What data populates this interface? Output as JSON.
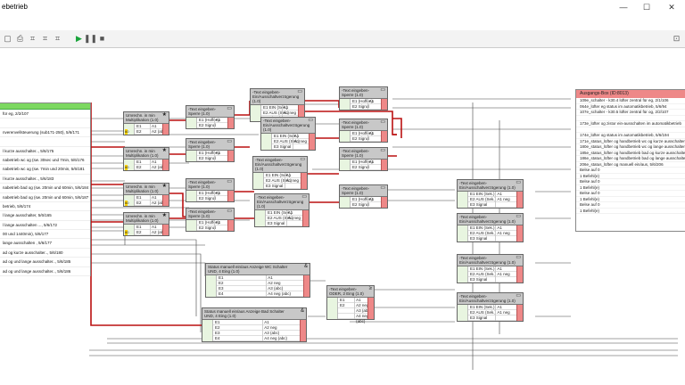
{
  "window": {
    "title": "ebetrieb",
    "minimize": "—",
    "maximize": "☐",
    "close": "✕"
  },
  "source_block": {
    "items": [
      "für eg, 2/2/107",
      "",
      "nverenvellsteuerung (sub171-250), 5/6/171",
      "",
      "l kurze ausschalter.., 5/6/175",
      "nabetrieb wc og (sw. 30sec und 7min, 5/6/176",
      "nabetrieb wc og (sw. 7min und 20min, 5/6/181",
      "l kurze ausschalter.., 5/6/183",
      "nabetrieb bad og (sw. 20min und 60min, 5/6/184",
      "nabetrieb bad og (sw. 20min und 60min, 5/6/187",
      "betrieb, 5/6/174",
      "l lange ausschalter, 5/6/165",
      "l lange ausschalten ..., 5/6/172",
      "00 und 1440min), 5/6/177",
      "lange ausschalten , 5/6/177",
      "ad og kurze ausschalter.., 5/6/180",
      "ad og und lange ausschalter.., 5/6/185",
      "ad og und lange ausschalter.., 5/6/186"
    ]
  },
  "mult_blocks": [
    {
      "title": "Umrechn. in min",
      "sub": "Multiplikation (1.0)",
      "rows": [
        [
          "E1",
          "A1"
        ],
        [
          "E2",
          "A2 (abc)"
        ]
      ],
      "badge": "60"
    },
    {
      "title": "Umrechn. in min",
      "sub": "Multiplikation (1.0)",
      "rows": [
        [
          "E1",
          "A1"
        ],
        [
          "E2",
          "A2 (abc)"
        ]
      ],
      "badge": "60"
    },
    {
      "title": "Umrechn. in min",
      "sub": "Multiplikation (1.0)",
      "rows": [
        [
          "E1",
          "A1"
        ],
        [
          "E2",
          "A2 (abc)"
        ]
      ],
      "badge": "60"
    },
    {
      "title": "Umrechn. in min",
      "sub": "Multiplikation (1.0)",
      "rows": [
        [
          "E1",
          "A1"
        ],
        [
          "E2",
          "A2 (abc)"
        ]
      ],
      "badge": "60"
    }
  ],
  "sperr_blocks": [
    {
      "title": "-Text eingeben-",
      "sub": "Sperre (1.0)",
      "rows": [
        [
          "E1 (Hoffen)",
          "A1"
        ],
        [
          "E2 Signal",
          ""
        ]
      ]
    },
    {
      "title": "-Text eingeben-",
      "sub": "Sperre (1.0)",
      "rows": [
        [
          "E1 (Hoffen)",
          "A1"
        ],
        [
          "E2 Signal",
          ""
        ]
      ]
    },
    {
      "title": "-Text eingeben-",
      "sub": "Sperre (1.0)",
      "rows": [
        [
          "E1 (Hoffen)",
          "A1"
        ],
        [
          "E2 Signal",
          ""
        ]
      ]
    },
    {
      "title": "-Text eingeben-",
      "sub": "Sperre (1.0)",
      "rows": [
        [
          "E1 (Hoffen)",
          "A1"
        ],
        [
          "E2 Signal",
          ""
        ]
      ]
    },
    {
      "title": "-Text eingeben-",
      "sub": "Sperre (1.0)",
      "rows": [
        [
          "E1 (Hoffen)",
          "A1"
        ],
        [
          "E2 Signal",
          ""
        ]
      ]
    },
    {
      "title": "-Text eingeben-",
      "sub": "Sperre (1.0)",
      "rows": [
        [
          "E1 (Hoffen)",
          "A1"
        ],
        [
          "E2 Signal",
          ""
        ]
      ]
    },
    {
      "title": "-Text eingeben-",
      "sub": "Sperre (1.0)",
      "rows": [
        [
          "E1 (Hoffen)",
          "A1"
        ],
        [
          "E2 Signal",
          ""
        ]
      ]
    },
    {
      "title": "-Text eingeben-",
      "sub": "Sperre (1.0)",
      "rows": [
        [
          "E1 (Hoffen)",
          "A1"
        ],
        [
          "E2 Signal",
          ""
        ]
      ]
    }
  ],
  "ein_blocks": [
    {
      "title": "-Text eingeben-",
      "sub": "Ein/Ausschaltverzögerung (1.0)",
      "rows": [
        [
          "E1 EIN (Sek.)",
          "A1"
        ],
        [
          "E2 AUS (Sek.)",
          "A1 neg"
        ],
        [
          "E3 Signal",
          ""
        ]
      ]
    },
    {
      "title": "-Text eingeben-",
      "sub": "Ein/Ausschaltverzögerung (1.0)",
      "rows": [
        [
          "E1 EIN (Sek.)",
          "A1"
        ],
        [
          "E2 AUS (Sek.)",
          "A1 neg"
        ],
        [
          "E3 Signal",
          ""
        ]
      ]
    },
    {
      "title": "-Text eingeben-",
      "sub": "Ein/Ausschaltverzögerung (1.0)",
      "rows": [
        [
          "E1 EIN (Sek.)",
          "A1"
        ],
        [
          "E2 AUS (Sek.)",
          "A1 neg"
        ],
        [
          "E3 Signal",
          ""
        ]
      ]
    },
    {
      "title": "-Text eingeben-",
      "sub": "Ein/Ausschaltverzögerung (1.0)",
      "rows": [
        [
          "E1 EIN (Sek.)",
          "A1"
        ],
        [
          "E2 AUS (Sek.)",
          "A1 neg"
        ],
        [
          "E3 Signal",
          ""
        ]
      ]
    },
    {
      "title": "-Text eingeben-",
      "sub": "Ein/Ausschaltverzögerung (1.0)",
      "rows": [
        [
          "E1 EIN (Sek.)",
          "A1"
        ],
        [
          "E2 AUS (Sek.)",
          "A1 neg"
        ],
        [
          "E3 Signal",
          ""
        ]
      ]
    },
    {
      "title": "-Text eingeben-",
      "sub": "Ein/Ausschaltverzögerung (1.0)",
      "rows": [
        [
          "E1 EIN (Sek.)",
          "A1"
        ],
        [
          "E2 AUS (Sek.)",
          "A1 neg"
        ],
        [
          "E3 Signal",
          ""
        ]
      ]
    },
    {
      "title": "-Text eingeben-",
      "sub": "Ein/Ausschaltverzögerung (1.0)",
      "rows": [
        [
          "E1 EIN (Sek.)",
          "A1"
        ],
        [
          "E2 AUS (Sek.)",
          "A1 neg"
        ],
        [
          "E3 Signal",
          ""
        ]
      ]
    },
    {
      "title": "-Text eingeben-",
      "sub": "Ein/Ausschaltverzögerung (1.0)",
      "rows": [
        [
          "E1 EIN (Sek.)",
          "A1"
        ],
        [
          "E2 AUS (Sek.)",
          "A1 neg"
        ],
        [
          "E3 Signal",
          ""
        ]
      ]
    }
  ],
  "status_blocks": [
    {
      "title": "Status manuell ein/aus Anzeige WC Schalter",
      "sub": "UND, 4 Eing (1.0)",
      "rows": [
        [
          "E1",
          "A1"
        ],
        [
          "E2",
          "A2 neg"
        ],
        [
          "E3",
          "A3 (abc)"
        ],
        [
          "E4",
          "A4 neg (abc)"
        ]
      ]
    },
    {
      "title": "Status manuell ein/aus Anzeige Bad Schalter",
      "sub": "UND, 4 Eing (1.0)",
      "rows": [
        [
          "E1",
          "A1"
        ],
        [
          "E2",
          "A2 neg"
        ],
        [
          "E3",
          "A3 (abc)"
        ],
        [
          "E4",
          "A4 neg (abc)"
        ]
      ]
    }
  ],
  "oder_block": {
    "title": "-Text eingeben-",
    "sub": "ODER, 2 Eing (1.0)",
    "rows": [
      [
        "E1",
        "A1"
      ],
      [
        "E2",
        "A2 neg"
      ],
      [
        "",
        "A3 (abc)"
      ],
      [
        "",
        "A4 neg (abc)"
      ]
    ]
  },
  "output_block": {
    "title": "Ausgangs-Box (ID:8013)",
    "items": [
      "109e_schalter - k30.4 lüfter zentral für eg, 2/1/106",
      "064e_lüfter eg status im automatikbetrieb, 5/6/94",
      "107e_schalter - k30.5 lüfter zentral für og, 2/2/107",
      "",
      "173e_lüfter og zistor ein-ausschalten im automatikbetrieb",
      "",
      "174e_lüfter og status im automatikbetrieb, 5/6/194",
      "171e_status_lüfter og handbetrieb wc og kurze ausschalter",
      "180e_status_lüfter og handbetrieb wc og lange ausschalter",
      "185e_status_lüfter og handbetrieb bad og kurze ausschalter",
      "186e_status_lüfter og handbetrieb bad og lange ausschalter",
      "206e_status_lüfter og manuell ein/aus, 5/6/206",
      "Belse auf 0",
      "1 Befehl(e)",
      "Belse auf 0",
      "1 Befehl(e)",
      "Belse auf 0",
      "1 Befehl(e)",
      "Belse auf 0",
      "1 Befehl(e)"
    ]
  }
}
